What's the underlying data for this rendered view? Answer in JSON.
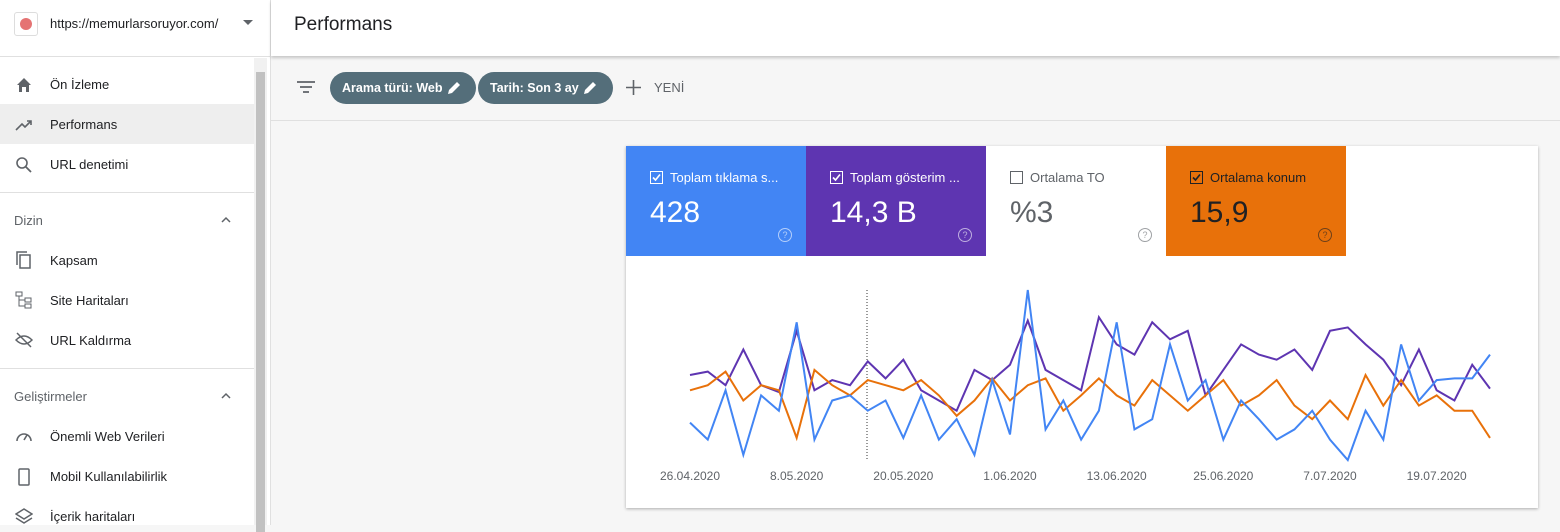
{
  "site": "https://memurlarsoruyor.com/",
  "header": {
    "title": "Performans"
  },
  "sidebar": {
    "items": [
      "Ön İzleme",
      "Performans",
      "URL denetimi"
    ],
    "sections": [
      {
        "title": "Dizin",
        "items": [
          "Kapsam",
          "Site Haritaları",
          "URL Kaldırma"
        ]
      },
      {
        "title": "Geliştirmeler",
        "items": [
          "Önemli Web Verileri",
          "Mobil Kullanılabilirlik",
          "İçerik haritaları"
        ]
      }
    ]
  },
  "filters": {
    "chips": [
      "Arama türü: Web",
      "Tarih: Son 3 ay"
    ],
    "new": "YENİ"
  },
  "metrics": [
    {
      "label": "Toplam tıklama s...",
      "value": "428",
      "checked": true,
      "color": "#4285f4"
    },
    {
      "label": "Toplam gösterim ...",
      "value": "14,3 B",
      "checked": true,
      "color": "#5e35b1"
    },
    {
      "label": "Ortalama TO",
      "value": "%3",
      "checked": false,
      "color": "#ffffff"
    },
    {
      "label": "Ortalama konum",
      "value": "15,9",
      "checked": true,
      "color": "#e8710a"
    }
  ],
  "chart": {
    "type": "line",
    "categories": [
      "26.04.2020",
      null,
      null,
      null,
      null,
      null,
      "8.05.2020",
      null,
      null,
      null,
      null,
      null,
      "20.05.2020",
      null,
      null,
      null,
      null,
      null,
      "1.06.2020",
      null,
      null,
      null,
      null,
      null,
      "13.06.2020",
      null,
      null,
      null,
      null,
      null,
      "25.06.2020",
      null,
      null,
      null,
      null,
      null,
      "7.07.2020",
      null,
      null,
      null,
      null,
      null,
      "19.07.2020",
      null,
      null,
      null
    ],
    "ylim": [
      0,
      100
    ],
    "series": [
      {
        "color": "#5e35b1",
        "values": [
          50,
          52,
          44,
          65,
          44,
          40,
          76,
          41,
          47,
          44,
          58,
          48,
          59,
          41,
          35,
          29,
          53,
          47,
          56,
          82,
          53,
          47,
          41,
          84,
          68,
          62,
          81,
          71,
          76,
          38,
          53,
          68,
          62,
          59,
          65,
          53,
          76,
          78,
          68,
          59,
          44,
          65,
          41,
          35,
          56,
          42
        ]
      },
      {
        "color": "#e8710a",
        "values": [
          41,
          44,
          52,
          35,
          44,
          41,
          13,
          53,
          44,
          38,
          47,
          44,
          41,
          47,
          38,
          26,
          35,
          48,
          35,
          44,
          48,
          29,
          38,
          48,
          38,
          32,
          47,
          38,
          29,
          38,
          47,
          32,
          38,
          47,
          32,
          24,
          35,
          24,
          50,
          32,
          47,
          32,
          38,
          29,
          29,
          13
        ]
      },
      {
        "color": "#4285f4",
        "values": [
          22,
          12,
          41,
          3,
          38,
          29,
          81,
          12,
          35,
          38,
          29,
          35,
          13,
          38,
          12,
          24,
          3,
          47,
          15,
          100,
          18,
          35,
          12,
          29,
          81,
          18,
          24,
          68,
          35,
          47,
          12,
          35,
          24,
          12,
          18,
          29,
          12,
          0,
          29,
          12,
          68,
          35,
          47,
          48,
          48,
          62
        ]
      }
    ]
  }
}
